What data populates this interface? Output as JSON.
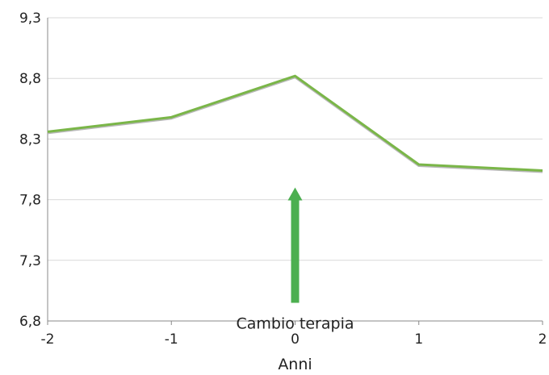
{
  "chart_data": {
    "type": "line",
    "x": [
      -2,
      -1,
      0,
      1,
      2
    ],
    "series": [
      {
        "values": [
          8.36,
          8.48,
          8.82,
          8.09,
          8.04
        ]
      }
    ],
    "xlabel": "Anni",
    "ylabel": "",
    "xlim": [
      -2,
      2
    ],
    "ylim": [
      6.8,
      9.3
    ],
    "xticks": [
      "-2",
      "-1",
      "0",
      "1",
      "2"
    ],
    "yticks": [
      "9,3",
      "8,8",
      "8,3",
      "7,8",
      "7,3",
      "6,8"
    ],
    "grid": true,
    "legend": "none",
    "annotation": {
      "text": "Cambio terapia",
      "x": 0,
      "y_from": 6.95,
      "y_to": 7.9
    },
    "colors": {
      "line": "#7ab648",
      "line_shade": "#b8b8b8",
      "arrow": "#4caf50",
      "grid": "#d9d9d9",
      "axis": "#888888"
    }
  }
}
